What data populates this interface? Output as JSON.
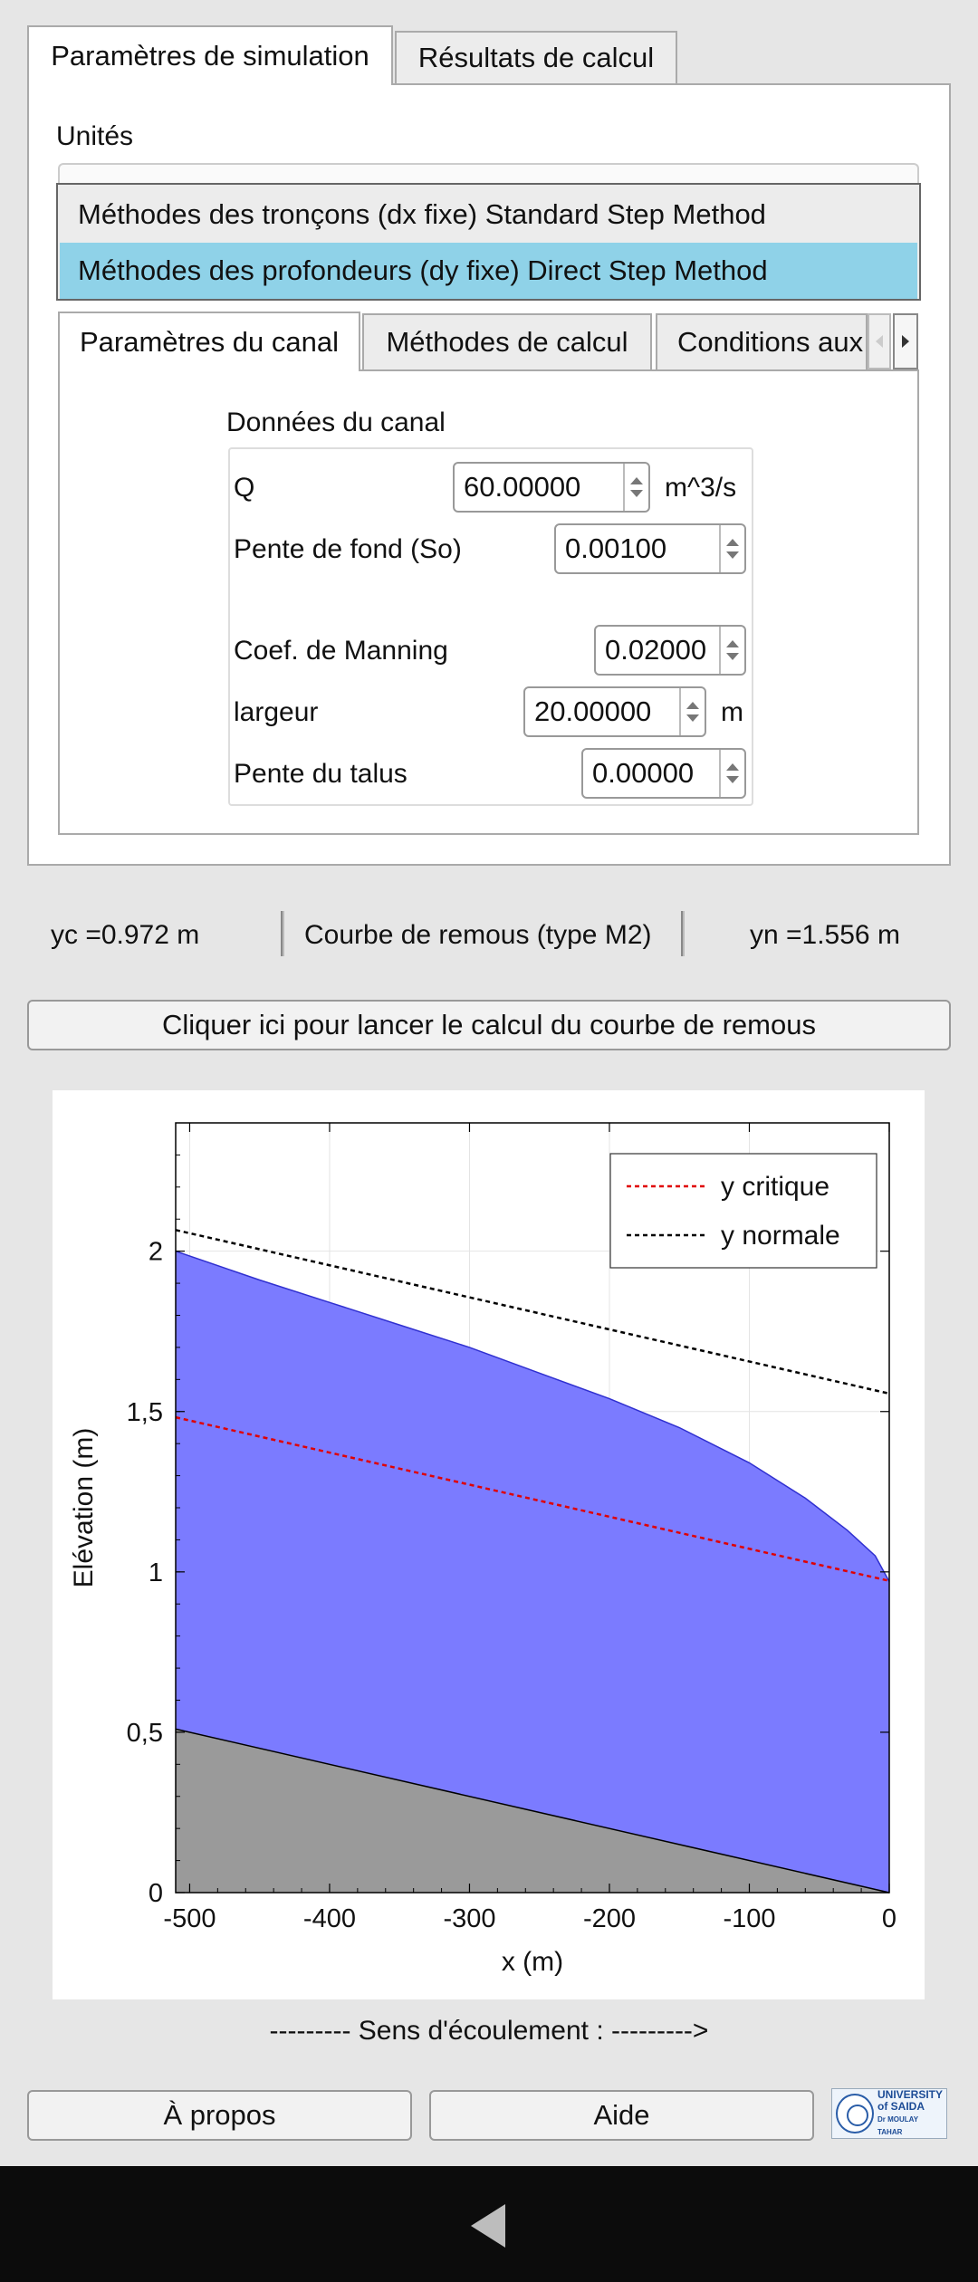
{
  "tabs": [
    {
      "label": "Paramètres de simulation",
      "active": true
    },
    {
      "label": "Résultats de calcul",
      "active": false
    }
  ],
  "units_label": "Unités",
  "methods": [
    {
      "label": "Méthodes des tronçons (dx fixe) Standard Step Method",
      "selected": false
    },
    {
      "label": "Méthodes des profondeurs (dy fixe) Direct Step Method",
      "selected": true
    }
  ],
  "inner_tabs": [
    {
      "label": "Paramètres du canal",
      "active": true
    },
    {
      "label": "Méthodes de calcul",
      "active": false
    },
    {
      "label": "Conditions aux",
      "active": false
    }
  ],
  "canal": {
    "group_title": "Données du canal",
    "fields": [
      {
        "label": "Q",
        "value": "60.00000",
        "unit": "m^3/s"
      },
      {
        "label": "Pente de fond (So)",
        "value": "0.00100",
        "unit": ""
      },
      {
        "label": "Coef. de Manning",
        "value": "0.02000",
        "unit": ""
      },
      {
        "label": "largeur",
        "value": "20.00000",
        "unit": "m"
      },
      {
        "label": "Pente du talus",
        "value": "0.00000",
        "unit": ""
      }
    ]
  },
  "status": {
    "yc": "yc  =0.972  m",
    "curve": "Courbe de remous (type M2)",
    "yn": "yn  =1.556  m"
  },
  "run_button": "Cliquer ici pour lancer le calcul du courbe de remous",
  "chart_data": {
    "type": "area",
    "xlabel": "x (m)",
    "ylabel": "Elévation (m)",
    "xlim": [
      -510,
      0
    ],
    "ylim": [
      0,
      2.4
    ],
    "x_ticks": [
      -500,
      -400,
      -300,
      -200,
      -100,
      0
    ],
    "x_tick_labels": [
      "-500",
      "-400",
      "-300",
      "-200",
      "-100",
      "0"
    ],
    "y_ticks": [
      0,
      0.5,
      1,
      1.5,
      2
    ],
    "y_tick_labels": [
      "0",
      "0,5",
      "1",
      "1,5",
      "2"
    ],
    "grid": true,
    "legend_position": "top-right",
    "colors": {
      "water": "#7b7bff",
      "bed": "#9a9a9a",
      "critical": "#e00000",
      "normal": "#000000"
    },
    "bed": {
      "x": [
        -510,
        0
      ],
      "y": [
        0.51,
        0.0
      ]
    },
    "water_surface": {
      "x": [
        -510,
        -450,
        -400,
        -350,
        -300,
        -250,
        -200,
        -150,
        -100,
        -60,
        -30,
        -10,
        0
      ],
      "y": [
        2.0,
        1.91,
        1.84,
        1.77,
        1.7,
        1.62,
        1.54,
        1.45,
        1.34,
        1.23,
        1.13,
        1.05,
        0.97
      ]
    },
    "series": [
      {
        "name": "y critique",
        "style": "dashed",
        "x": [
          -510,
          0
        ],
        "y": [
          1.482,
          0.972
        ]
      },
      {
        "name": "y normale",
        "style": "dashed",
        "x": [
          -510,
          0
        ],
        "y": [
          2.066,
          1.556
        ]
      }
    ]
  },
  "flow_direction": "--------- Sens d'écoulement : --------->",
  "about_button": "À propos",
  "help_button": "Aide",
  "logo_text": {
    "line1": "UNIVERSITY",
    "line2": "of SAIDA",
    "line3": "Dr MOULAY TAHAR"
  }
}
